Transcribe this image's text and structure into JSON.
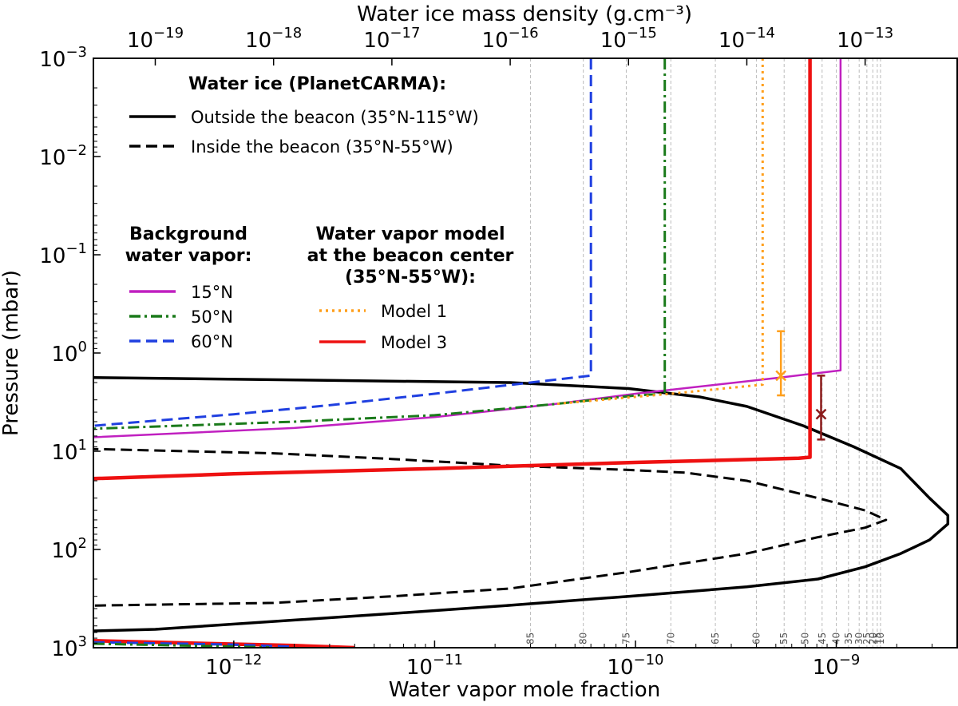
{
  "chart_data": {
    "type": "line",
    "xlabel": "Water vapor mole fraction",
    "xlabel_top": "Water ice mass density (g.cm⁻³)",
    "ylabel": "Pressure (mbar)",
    "x_scale": "log",
    "y_scale": "log",
    "y_inverted": true,
    "xlim": [
      2e-13,
      4e-09
    ],
    "ylim": [
      1000,
      0.001
    ],
    "top_xlim": [
      3e-20,
      6e-13
    ],
    "x_ticks": [
      {
        "value": 1e-12,
        "base": "10",
        "exp": "−12"
      },
      {
        "value": 1e-11,
        "base": "10",
        "exp": "−11"
      },
      {
        "value": 1e-10,
        "base": "10",
        "exp": "−10"
      },
      {
        "value": 1e-09,
        "base": "10",
        "exp": "−9"
      }
    ],
    "top_ticks": [
      {
        "value": 1e-19,
        "base": "10",
        "exp": "−19"
      },
      {
        "value": 1e-18,
        "base": "10",
        "exp": "−18"
      },
      {
        "value": 1e-17,
        "base": "10",
        "exp": "−17"
      },
      {
        "value": 1e-16,
        "base": "10",
        "exp": "−16"
      },
      {
        "value": 1e-15,
        "base": "10",
        "exp": "−15"
      },
      {
        "value": 1e-14,
        "base": "10",
        "exp": "−14"
      },
      {
        "value": 1e-13,
        "base": "10",
        "exp": "−13"
      }
    ],
    "y_ticks": [
      {
        "value": 0.001,
        "base": "10",
        "exp": "−3"
      },
      {
        "value": 0.01,
        "base": "10",
        "exp": "−2"
      },
      {
        "value": 0.1,
        "base": "10",
        "exp": "−1"
      },
      {
        "value": 1,
        "base": "10",
        "exp": "0"
      },
      {
        "value": 10,
        "base": "10",
        "exp": "1"
      },
      {
        "value": 100,
        "base": "10",
        "exp": "2"
      },
      {
        "value": 1000,
        "base": "10",
        "exp": "3"
      }
    ],
    "temperature_grid": [
      {
        "label": "85",
        "x": 3e-11
      },
      {
        "label": "80",
        "x": 5.5e-11
      },
      {
        "label": "75",
        "x": 9e-11
      },
      {
        "label": "70",
        "x": 1.5e-10
      },
      {
        "label": "65",
        "x": 2.5e-10
      },
      {
        "label": "60",
        "x": 4e-10
      },
      {
        "label": "55",
        "x": 5.5e-10
      },
      {
        "label": "50",
        "x": 7e-10
      },
      {
        "label": "45",
        "x": 8.5e-10
      },
      {
        "label": "40",
        "x": 1e-09
      },
      {
        "label": "35",
        "x": 1.15e-09
      },
      {
        "label": "30",
        "x": 1.3e-09
      },
      {
        "label": "25",
        "x": 1.42e-09
      },
      {
        "label": "20",
        "x": 1.52e-09
      },
      {
        "label": "15",
        "x": 1.6e-09
      },
      {
        "label": "10",
        "x": 1.66e-09
      }
    ],
    "legend_ice": {
      "title": "Water ice (PlanetCARMA):",
      "items": [
        {
          "label": "Outside the beacon (35°N-115°W)",
          "color": "#000000",
          "dash": "solid"
        },
        {
          "label": "Inside the beacon (35°N-55°W)",
          "color": "#000000",
          "dash": "dashed"
        }
      ]
    },
    "legend_background": {
      "title_lines": [
        "Background",
        "water vapor:"
      ],
      "items": [
        {
          "label": "15°N",
          "color": "#c020c0",
          "dash": "solid"
        },
        {
          "label": "50°N",
          "color": "#1a7a1a",
          "dash": "dashdot"
        },
        {
          "label": "60°N",
          "color": "#1f3fe0",
          "dash": "dashed"
        }
      ]
    },
    "legend_model": {
      "title_lines": [
        "Water vapor model",
        "at the beacon center",
        "(35°N-55°W):"
      ],
      "items": [
        {
          "label": "Model 1",
          "color": "#ff9f1c",
          "dash": "dotted"
        },
        {
          "label": "Model 3",
          "color": "#ee1111",
          "dash": "solid"
        }
      ]
    },
    "series": [
      {
        "name": "Water ice outside the beacon (35°N-115°W)",
        "axis": "top",
        "color": "#000000",
        "dash": "solid",
        "width": 3.5,
        "points": [
          [
            1e-20,
            1.75
          ],
          [
            1e-16,
            2.0
          ],
          [
            1e-15,
            2.3
          ],
          [
            4e-15,
            2.8
          ],
          [
            1e-14,
            3.5
          ],
          [
            3e-14,
            5.5
          ],
          [
            8e-14,
            9
          ],
          [
            2e-13,
            15
          ],
          [
            3.5e-13,
            30
          ],
          [
            5e-13,
            45
          ],
          [
            5e-13,
            55
          ],
          [
            3.5e-13,
            80
          ],
          [
            2e-13,
            110
          ],
          [
            1e-13,
            150
          ],
          [
            4e-14,
            200
          ],
          [
            1e-14,
            240
          ],
          [
            1e-15,
            300
          ],
          [
            1e-16,
            370
          ],
          [
            1e-17,
            450
          ],
          [
            1e-19,
            650
          ],
          [
            1e-20,
            700
          ]
        ]
      },
      {
        "name": "Water ice inside the beacon (35°N-55°W)",
        "axis": "top",
        "color": "#000000",
        "dash": "dashed",
        "width": 3,
        "points": [
          [
            1e-20,
            9.2
          ],
          [
            1e-18,
            10.5
          ],
          [
            1e-17,
            12
          ],
          [
            1e-16,
            14
          ],
          [
            1e-15,
            15.5
          ],
          [
            3e-15,
            16.5
          ],
          [
            1e-14,
            20
          ],
          [
            4e-14,
            30
          ],
          [
            1e-13,
            40
          ],
          [
            1.5e-13,
            50
          ],
          [
            1e-13,
            60
          ],
          [
            4e-14,
            75
          ],
          [
            1e-14,
            110
          ],
          [
            1e-15,
            170
          ],
          [
            1e-16,
            250
          ],
          [
            1e-17,
            300
          ],
          [
            1e-18,
            350
          ],
          [
            1e-20,
            380
          ]
        ]
      },
      {
        "name": "15°N",
        "axis": "bottom",
        "color": "#c020c0",
        "dash": "solid",
        "width": 2.5,
        "points": [
          [
            1.05e-09,
            0.001
          ],
          [
            1.05e-09,
            1.5
          ],
          [
            5e-10,
            1.8
          ],
          [
            1e-10,
            2.6
          ],
          [
            4e-11,
            3.3
          ],
          [
            1e-11,
            4.5
          ],
          [
            2e-12,
            5.8
          ],
          [
            2e-13,
            7.2
          ]
        ]
      },
      {
        "name": "50°N",
        "axis": "bottom",
        "color": "#1a7a1a",
        "dash": "dashdot",
        "width": 3,
        "points": [
          [
            1.4e-10,
            0.001
          ],
          [
            1.4e-10,
            2.6
          ],
          [
            1e-10,
            2.7
          ],
          [
            4e-11,
            3.3
          ],
          [
            1e-11,
            4.3
          ],
          [
            2e-12,
            5.0
          ],
          [
            2e-13,
            5.9
          ]
        ]
      },
      {
        "name": "60°N",
        "axis": "bottom",
        "color": "#1f3fe0",
        "dash": "dashed",
        "width": 3,
        "points": [
          [
            6e-11,
            0.001
          ],
          [
            6e-11,
            1.7
          ],
          [
            3e-11,
            2.0
          ],
          [
            1e-11,
            2.6
          ],
          [
            3e-12,
            3.4
          ],
          [
            1e-12,
            4.2
          ],
          [
            2e-13,
            5.5
          ]
        ]
      },
      {
        "name": "Model 1",
        "axis": "bottom",
        "color": "#ff9f1c",
        "dash": "dotted",
        "width": 3,
        "points": [
          [
            4.3e-10,
            0.001
          ],
          [
            4.3e-10,
            2.1
          ],
          [
            1.5e-10,
            2.6
          ],
          [
            4e-11,
            3.3
          ]
        ]
      },
      {
        "name": "Model 3",
        "axis": "bottom",
        "color": "#ee1111",
        "dash": "solid",
        "width": 4.5,
        "points": [
          [
            7.4e-10,
            0.001
          ],
          [
            7.4e-10,
            11.5
          ],
          [
            6.5e-10,
            11.8
          ],
          [
            1e-10,
            13
          ],
          [
            1e-11,
            15
          ],
          [
            1e-12,
            17
          ],
          [
            2e-13,
            19
          ]
        ]
      },
      {
        "name": "Model 3 bottom",
        "axis": "bottom",
        "color": "#ee1111",
        "dash": "solid",
        "width": 4.5,
        "points": [
          [
            2e-13,
            850
          ],
          [
            2e-12,
            950
          ],
          [
            4e-12,
            1000
          ]
        ]
      },
      {
        "name": "60°N bottom",
        "axis": "bottom",
        "color": "#1f3fe0",
        "dash": "dashed",
        "width": 3,
        "points": [
          [
            2e-13,
            880
          ],
          [
            1e-12,
            930
          ],
          [
            2e-12,
            980
          ]
        ]
      },
      {
        "name": "50°N bottom",
        "axis": "bottom",
        "color": "#1a7a1a",
        "dash": "dashdot",
        "width": 3,
        "points": [
          [
            2e-13,
            910
          ],
          [
            1.5e-12,
            990
          ]
        ]
      }
    ],
    "errorbars": [
      {
        "name": "Model 1 retrieval",
        "color": "#ff9f1c",
        "x": 5.3e-10,
        "y": 1.7,
        "y_low": 0.6,
        "y_high": 2.7
      },
      {
        "name": "Model 3 retrieval",
        "color": "#8b1a1a",
        "x": 8.4e-10,
        "y": 4.2,
        "y_low": 1.7,
        "y_high": 7.6
      }
    ]
  }
}
